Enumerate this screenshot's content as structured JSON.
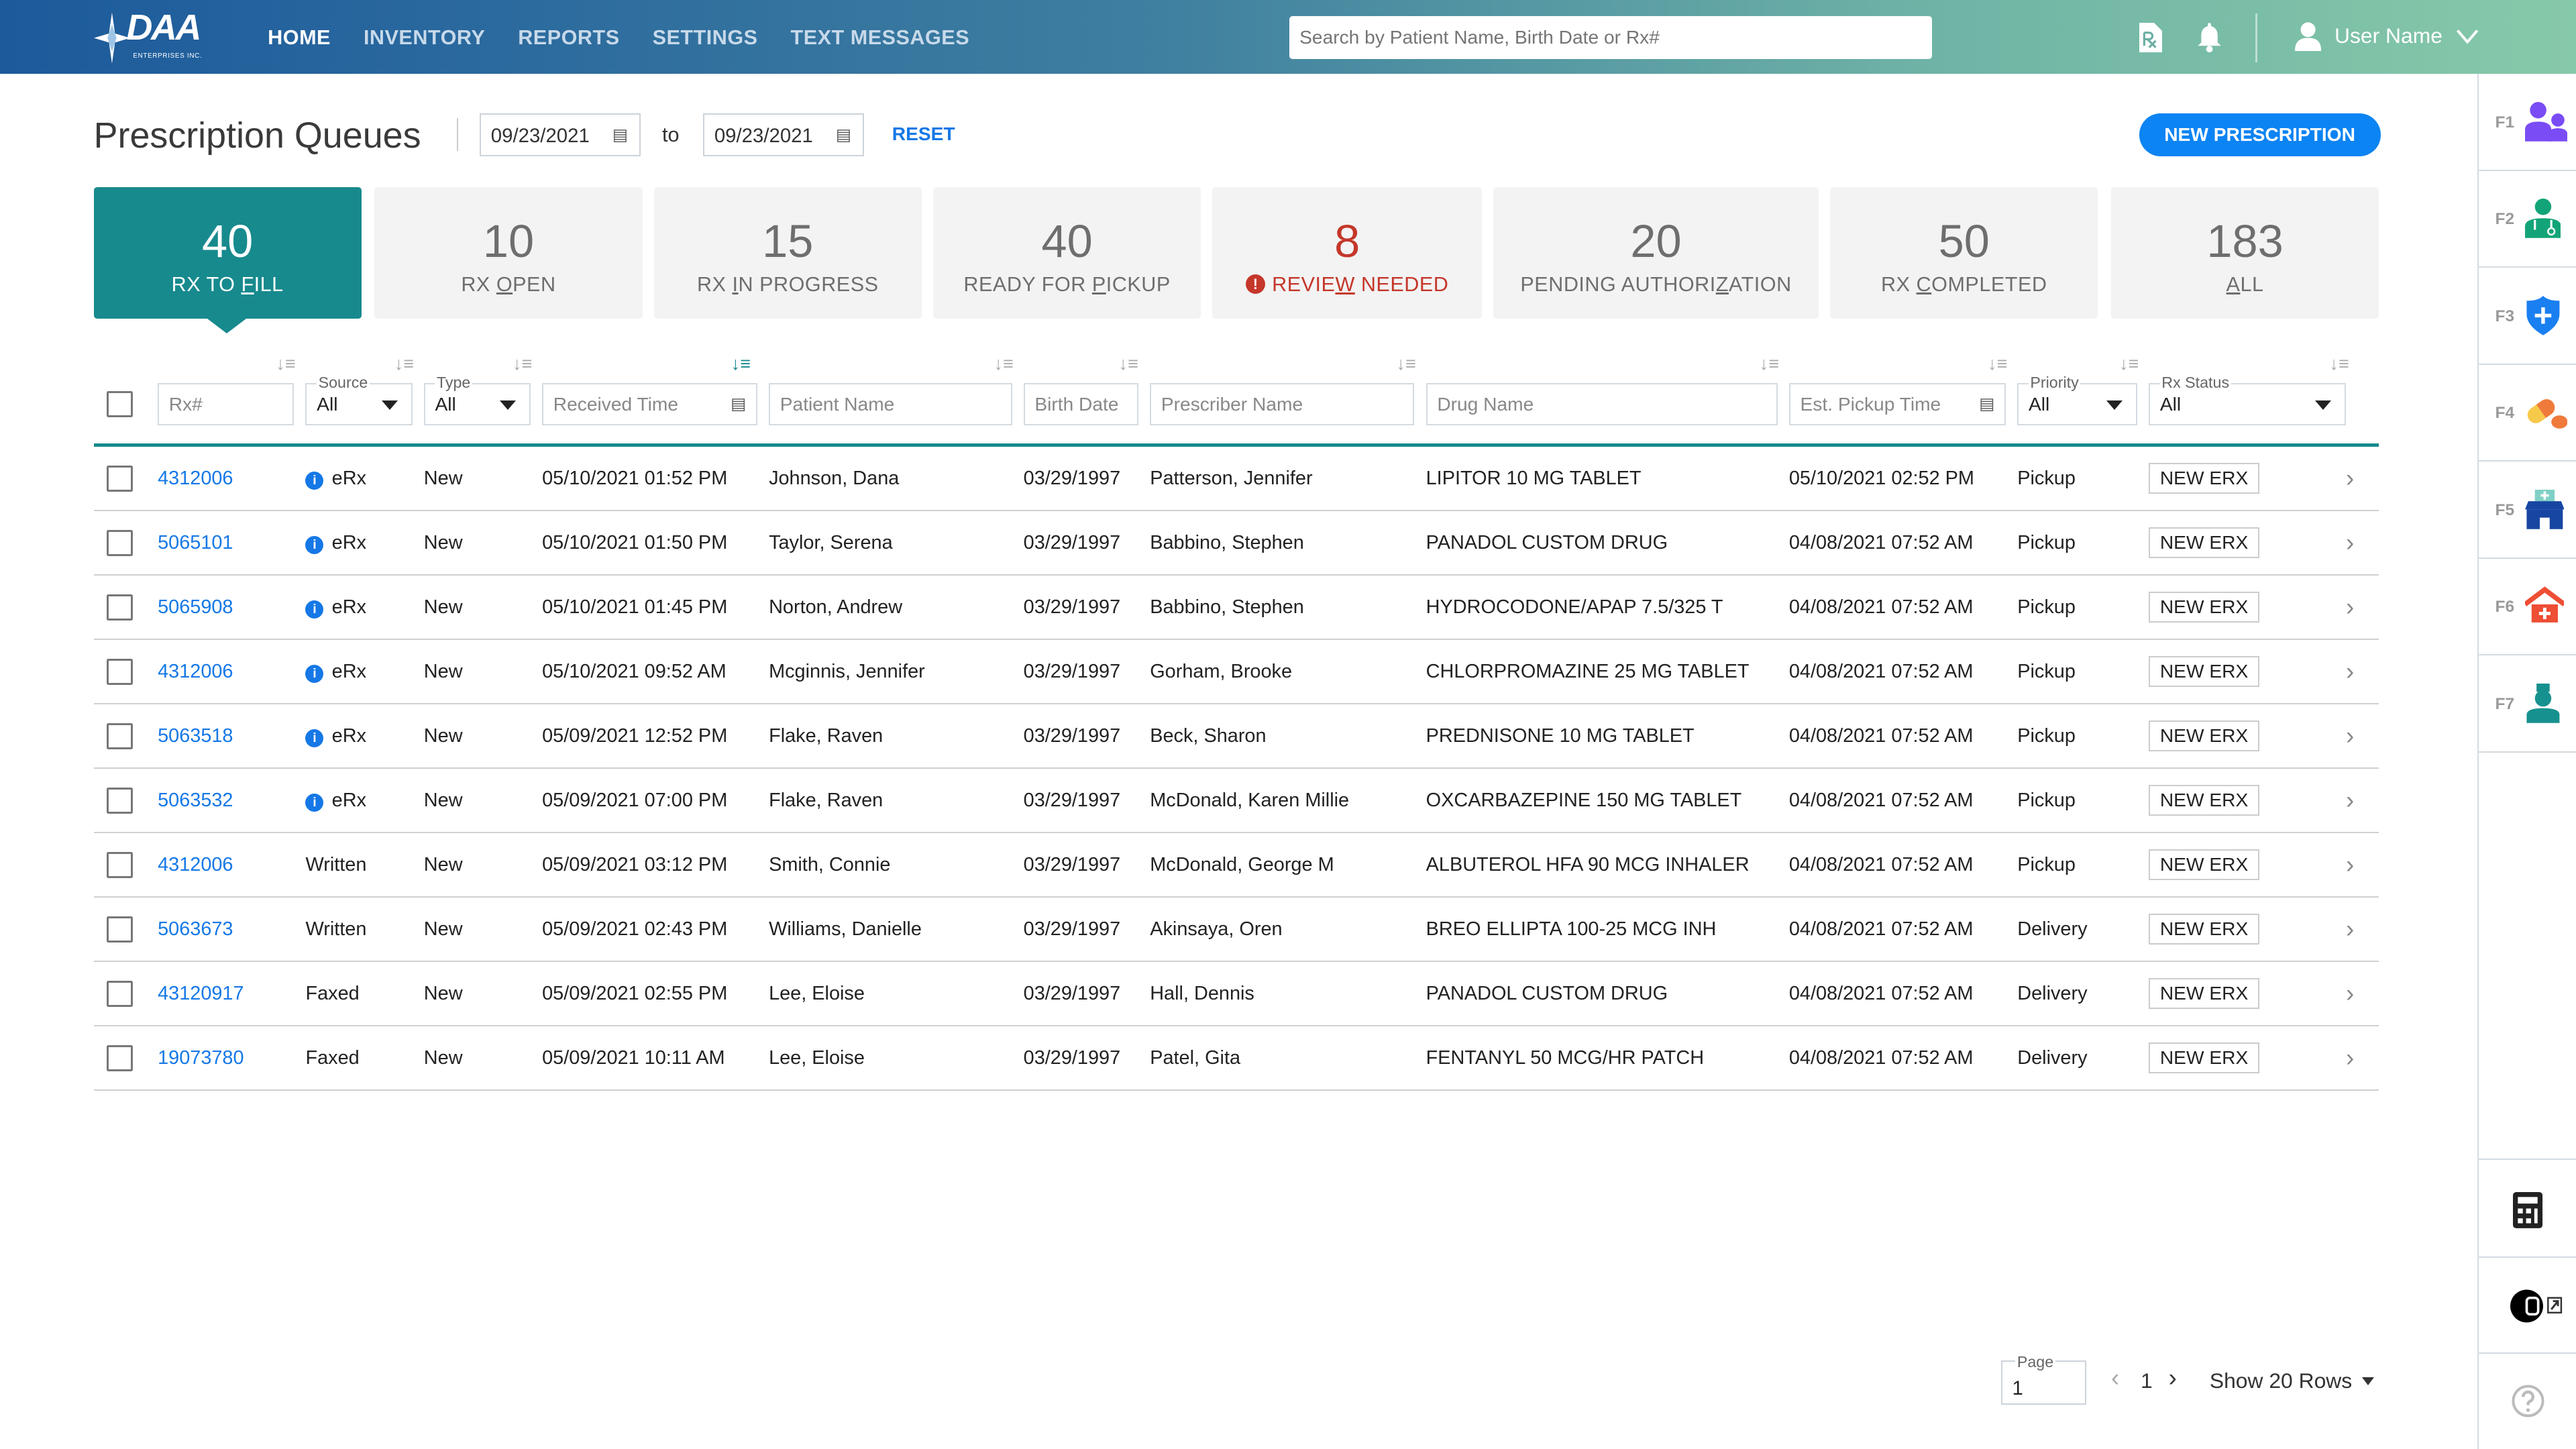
{
  "header": {
    "logo_text": "DAA",
    "logo_subtext": "ENTERPRISES INC.",
    "nav": [
      {
        "label": "HOME",
        "active": true
      },
      {
        "label": "INVENTORY"
      },
      {
        "label": "REPORTS"
      },
      {
        "label": "SETTINGS"
      },
      {
        "label": "TEXT MESSAGES"
      }
    ],
    "search_placeholder": "Search by Patient Name, Birth Date or Rx#",
    "icons": [
      "rx-document-icon",
      "bell-icon"
    ],
    "user_name": "User Name"
  },
  "page": {
    "title": "Prescription Queues",
    "date_from": "09/23/2021",
    "date_to": "09/23/2021",
    "to_label": "to",
    "reset_label": "RESET",
    "new_prescription_label": "NEW PRESCRIPTION"
  },
  "tabs": [
    {
      "count": "40",
      "label": "RX TO FILL",
      "key": "F",
      "active": true
    },
    {
      "count": "10",
      "label": "RX OPEN",
      "key": "O"
    },
    {
      "count": "15",
      "label": "RX IN PROGRESS",
      "key": "I"
    },
    {
      "count": "40",
      "label": "READY FOR PICKUP",
      "key": "P"
    },
    {
      "count": "8",
      "label": "REVIEW NEEDED",
      "key": "W",
      "alert": true
    },
    {
      "count": "20",
      "label": "PENDING AUTHORIZATION",
      "key": "Z"
    },
    {
      "count": "50",
      "label": "RX COMPLETED",
      "key": "C"
    },
    {
      "count": "183",
      "label": "ALL",
      "key": "A"
    }
  ],
  "colors": {
    "accent": "#178a8e",
    "primary": "#0d84f3",
    "alert": "#c4372a",
    "link": "#1578e6"
  },
  "filters": {
    "rx": "Rx#",
    "source_legend": "Source",
    "source_value": "All",
    "type_legend": "Type",
    "type_value": "All",
    "received": "Received Time",
    "patient": "Patient Name",
    "birth": "Birth Date",
    "prescriber": "Prescriber Name",
    "drug": "Drug Name",
    "pickup": "Est. Pickup Time",
    "priority_legend": "Priority",
    "priority_value": "All",
    "status_legend": "Rx Status",
    "status_value": "All"
  },
  "rows": [
    {
      "rx": "4312006",
      "source": "eRx",
      "info": true,
      "type": "New",
      "received": "05/10/2021 01:52 PM",
      "patient": "Johnson, Dana",
      "birth": "03/29/1997",
      "prescriber": "Patterson, Jennifer",
      "drug": "LIPITOR 10 MG TABLET",
      "pickup": "05/10/2021 02:52 PM",
      "priority": "Pickup",
      "status": "NEW ERX"
    },
    {
      "rx": "5065101",
      "source": "eRx",
      "info": true,
      "type": "New",
      "received": "05/10/2021 01:50 PM",
      "patient": "Taylor, Serena",
      "birth": "03/29/1997",
      "prescriber": "Babbino, Stephen",
      "drug": "PANADOL CUSTOM DRUG",
      "pickup": "04/08/2021 07:52 AM",
      "priority": "Pickup",
      "status": "NEW ERX"
    },
    {
      "rx": "5065908",
      "source": "eRx",
      "info": true,
      "type": "New",
      "received": "05/10/2021 01:45 PM",
      "patient": "Norton, Andrew",
      "birth": "03/29/1997",
      "prescriber": "Babbino, Stephen",
      "drug": "HYDROCODONE/APAP 7.5/325 T",
      "pickup": "04/08/2021 07:52 AM",
      "priority": "Pickup",
      "status": "NEW ERX"
    },
    {
      "rx": "4312006",
      "source": "eRx",
      "info": true,
      "type": "New",
      "received": "05/10/2021 09:52 AM",
      "patient": "Mcginnis, Jennifer",
      "birth": "03/29/1997",
      "prescriber": "Gorham, Brooke",
      "drug": "CHLORPROMAZINE 25 MG TABLET",
      "pickup": "04/08/2021 07:52 AM",
      "priority": "Pickup",
      "status": "NEW ERX"
    },
    {
      "rx": "5063518",
      "source": "eRx",
      "info": true,
      "type": "New",
      "received": "05/09/2021 12:52 PM",
      "patient": "Flake, Raven",
      "birth": "03/29/1997",
      "prescriber": "Beck, Sharon",
      "drug": "PREDNISONE 10 MG TABLET",
      "pickup": "04/08/2021 07:52 AM",
      "priority": "Pickup",
      "status": "NEW ERX"
    },
    {
      "rx": "5063532",
      "source": "eRx",
      "info": true,
      "type": "New",
      "received": "05/09/2021 07:00 PM",
      "patient": "Flake, Raven",
      "birth": "03/29/1997",
      "prescriber": "McDonald, Karen Millie",
      "drug": "OXCARBAZEPINE 150 MG TABLET",
      "pickup": "04/08/2021 07:52 AM",
      "priority": "Pickup",
      "status": "NEW ERX"
    },
    {
      "rx": "4312006",
      "source": "Written",
      "type": "New",
      "received": "05/09/2021 03:12 PM",
      "patient": "Smith, Connie",
      "birth": "03/29/1997",
      "prescriber": "McDonald, George M",
      "drug": "ALBUTEROL HFA 90 MCG INHALER",
      "pickup": "04/08/2021 07:52 AM",
      "priority": "Pickup",
      "status": "NEW ERX"
    },
    {
      "rx": "5063673",
      "source": "Written",
      "type": "New",
      "received": "05/09/2021 02:43 PM",
      "patient": "Williams, Danielle",
      "birth": "03/29/1997",
      "prescriber": "Akinsaya, Oren",
      "drug": "BREO ELLIPTA 100-25 MCG INH",
      "pickup": "04/08/2021 07:52 AM",
      "priority": "Delivery",
      "status": "NEW ERX"
    },
    {
      "rx": "43120917",
      "source": "Faxed",
      "type": "New",
      "received": "05/09/2021 02:55 PM",
      "patient": "Lee, Eloise",
      "birth": "03/29/1997",
      "prescriber": "Hall, Dennis",
      "drug": "PANADOL CUSTOM DRUG",
      "pickup": "04/08/2021 07:52 AM",
      "priority": "Delivery",
      "status": "NEW ERX"
    },
    {
      "rx": "19073780",
      "source": "Faxed",
      "type": "New",
      "received": "05/09/2021 10:11 AM",
      "patient": "Lee, Eloise",
      "birth": "03/29/1997",
      "prescriber": "Patel, Gita",
      "drug": "FENTANYL 50 MCG/HR PATCH",
      "pickup": "04/08/2021 07:52 AM",
      "priority": "Delivery",
      "status": "NEW ERX"
    }
  ],
  "pagination": {
    "page_legend": "Page",
    "page_value": "1",
    "current": "1",
    "rows_label": "Show 20 Rows"
  },
  "sidebar": {
    "items": [
      {
        "key": "F1",
        "icon": "patients-icon"
      },
      {
        "key": "F2",
        "icon": "doctor-icon"
      },
      {
        "key": "F3",
        "icon": "insurance-shield-icon"
      },
      {
        "key": "F4",
        "icon": "pills-icon"
      },
      {
        "key": "F5",
        "icon": "pharmacy-store-icon"
      },
      {
        "key": "F6",
        "icon": "facility-icon"
      },
      {
        "key": "F7",
        "icon": "nurse-icon"
      }
    ],
    "bottom": [
      "calculator-icon",
      "external-app-icon",
      "help-icon"
    ]
  }
}
